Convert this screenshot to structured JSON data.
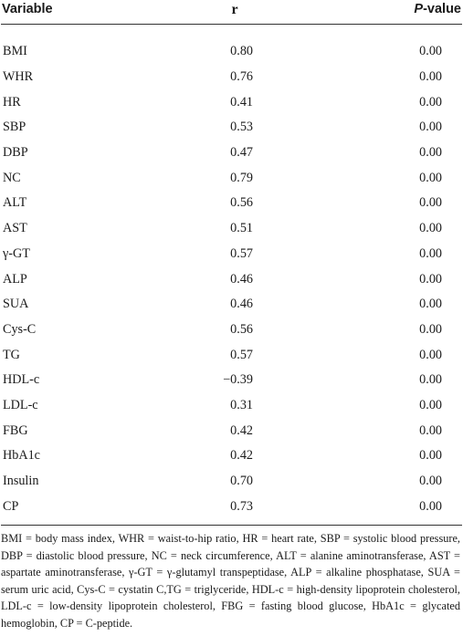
{
  "table": {
    "headers": {
      "variable": "Variable",
      "r": "r",
      "p_italic": "P",
      "p_suffix": "-value"
    },
    "rows": [
      {
        "variable": "BMI",
        "r": "0.80",
        "p": "0.00"
      },
      {
        "variable": "WHR",
        "r": "0.76",
        "p": "0.00"
      },
      {
        "variable": "HR",
        "r": "0.41",
        "p": "0.00"
      },
      {
        "variable": "SBP",
        "r": "0.53",
        "p": "0.00"
      },
      {
        "variable": "DBP",
        "r": "0.47",
        "p": "0.00"
      },
      {
        "variable": "NC",
        "r": "0.79",
        "p": "0.00"
      },
      {
        "variable": "ALT",
        "r": "0.56",
        "p": "0.00"
      },
      {
        "variable": "AST",
        "r": "0.51",
        "p": "0.00"
      },
      {
        "variable": "γ-GT",
        "r": "0.57",
        "p": "0.00"
      },
      {
        "variable": "ALP",
        "r": "0.46",
        "p": "0.00"
      },
      {
        "variable": "SUA",
        "r": "0.46",
        "p": "0.00"
      },
      {
        "variable": "Cys-C",
        "r": "0.56",
        "p": "0.00"
      },
      {
        "variable": "TG",
        "r": "0.57",
        "p": "0.00"
      },
      {
        "variable": "HDL-c",
        "r": "−0.39",
        "p": "0.00"
      },
      {
        "variable": "LDL-c",
        "r": "0.31",
        "p": "0.00"
      },
      {
        "variable": "FBG",
        "r": "0.42",
        "p": "0.00"
      },
      {
        "variable": "HbA1c",
        "r": "0.42",
        "p": "0.00"
      },
      {
        "variable": "Insulin",
        "r": "0.70",
        "p": "0.00"
      },
      {
        "variable": "CP",
        "r": "0.73",
        "p": "0.00"
      }
    ],
    "footnote": "BMI = body mass index, WHR = waist-to-hip ratio, HR = heart rate, SBP = systolic blood pressure, DBP = diastolic blood pressure, NC = neck circumference, ALT = alanine aminotransferase, AST = aspartate aminotransferase, γ-GT = γ-glutamyl transpeptidase, ALP = alkaline phosphatase, SUA = serum uric acid, Cys-C = cystatin C,TG = triglyceride, HDL-c = high-density lipoprotein cholesterol, LDL-c = low-density lipoprotein cholesterol, FBG = fasting blood glucose, HbA1c = glycated hemoglobin, CP = C-peptide."
  }
}
